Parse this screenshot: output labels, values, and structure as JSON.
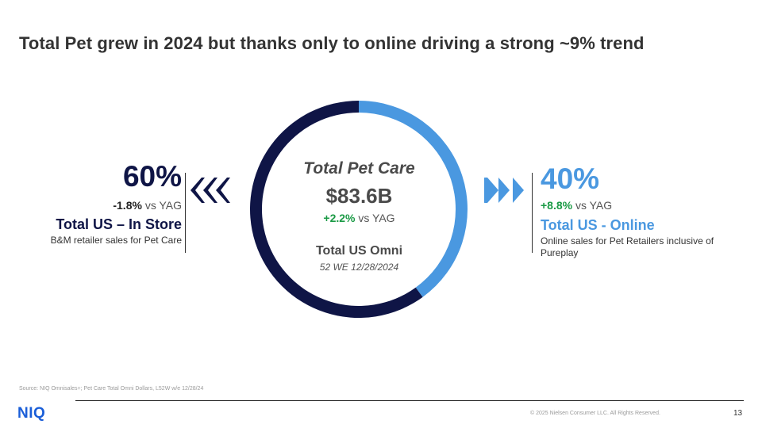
{
  "slide": {
    "title": "Total Pet grew in 2024 but thanks only to online driving a strong ~9% trend",
    "footnote": "Source: NIQ Omnisales+; Pet Care Total Omni Dollars, L52W w/e 12/28/24",
    "logo": "NIQ",
    "copyright": "© 2025 Nielsen Consumer LLC. All Rights Reserved.",
    "page_number": "13"
  },
  "center": {
    "title": "Total Pet Care",
    "value": "$83.6B",
    "growth": "+2.2%",
    "growth_suffix": " vs YAG",
    "subtitle": "Total US Omni",
    "period": "52 WE 12/28/2024"
  },
  "left": {
    "percent": "60%",
    "growth": "-1.8%",
    "growth_suffix": " vs YAG",
    "label": "Total US – In Store",
    "description": "B&M retailer sales for Pet Care"
  },
  "right": {
    "percent": "40%",
    "growth": "+8.8%",
    "growth_suffix": " vs YAG",
    "label": "Total US - Online",
    "description": "Online sales for Pet Retailers inclusive of Pureplay"
  },
  "colors": {
    "in_store": "#0f1546",
    "online": "#4a98e0",
    "positive": "#1a9a45",
    "brand": "#1a5ed8"
  },
  "icons": {
    "left_arrows": "triple-chevron-left-icon",
    "right_arrows": "triple-chevron-right-icon"
  },
  "chart_data": {
    "type": "pie",
    "categories": [
      "Total US – In Store",
      "Total US - Online"
    ],
    "values": [
      60,
      40
    ],
    "center_label": "Total Pet Care",
    "center_value": "$83.6B"
  }
}
